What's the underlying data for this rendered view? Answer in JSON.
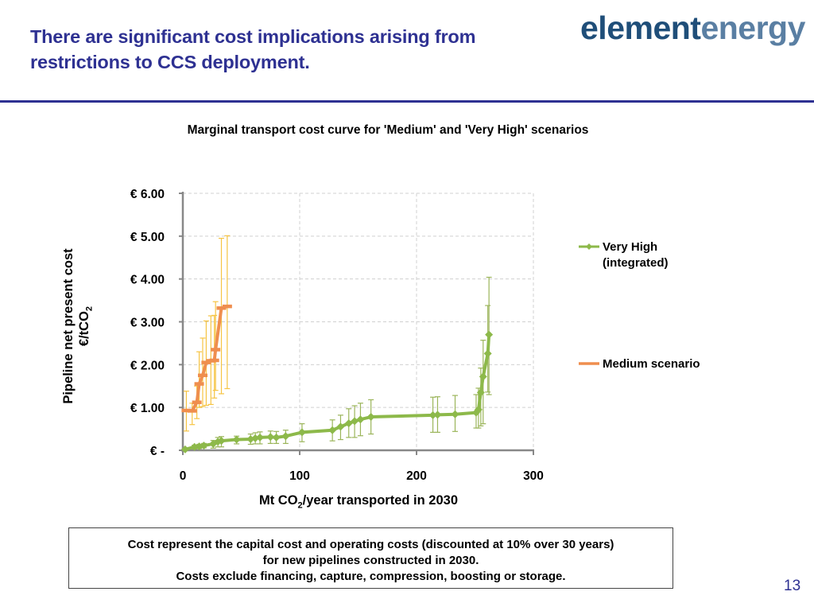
{
  "slide": {
    "title_line1": "There are significant cost implications arising from",
    "title_line2": "restrictions to CCS deployment.",
    "logo_part1": "element",
    "logo_part2": "energy",
    "page_number": "13",
    "note_lines": [
      "Cost represent the capital cost and operating costs (discounted at 10% over 30 years)",
      "for new pipelines constructed in 2030.",
      "Costs exclude financing, capture, compression, boosting or storage."
    ]
  },
  "chart_data": {
    "type": "line",
    "title": "Marginal transport cost curve for 'Medium' and 'Very High' scenarios",
    "xlabel": "Mt CO2/year transported in 2030",
    "xlabel_main": "Mt CO",
    "xlabel_sub": "2",
    "xlabel_rest": "/year transported in 2030",
    "ylabel_line1": "Pipeline net present cost",
    "ylabel_line2": "€/tCO",
    "ylabel_sub": "2",
    "xlim": [
      0,
      300
    ],
    "ylim": [
      0,
      6
    ],
    "xticks": [
      0,
      100,
      200,
      300
    ],
    "xtick_labels": [
      "0",
      "100",
      "200",
      "300"
    ],
    "yticks": [
      0,
      1,
      2,
      3,
      4,
      5,
      6
    ],
    "ytick_labels": [
      "€ -",
      "€ 1.00",
      "€ 2.00",
      "€ 3.00",
      "€ 4.00",
      "€ 5.00",
      "€ 6.00"
    ],
    "grid": true,
    "legend_position": "right",
    "series": [
      {
        "name": "Very High (integrated)",
        "label_line1": "Very High",
        "label_line2": "(integrated)",
        "color": "#8db94a",
        "errcolor": "#9bb55a",
        "marker": "diamond",
        "x": [
          2,
          10,
          14,
          18,
          26,
          30,
          33,
          46,
          58,
          62,
          66,
          75,
          80,
          88,
          102,
          128,
          135,
          142,
          147,
          152,
          161,
          214,
          218,
          233,
          251,
          253,
          255,
          257,
          261,
          262
        ],
        "y": [
          0.02,
          0.08,
          0.09,
          0.11,
          0.15,
          0.2,
          0.22,
          0.25,
          0.26,
          0.28,
          0.3,
          0.31,
          0.3,
          0.33,
          0.42,
          0.47,
          0.55,
          0.63,
          0.68,
          0.72,
          0.78,
          0.82,
          0.83,
          0.84,
          0.88,
          0.95,
          1.35,
          1.72,
          2.26,
          2.7
        ],
        "err_low": [
          0.0,
          0.05,
          0.05,
          0.05,
          0.1,
          0.12,
          0.14,
          0.1,
          0.12,
          0.13,
          0.15,
          0.15,
          0.14,
          0.17,
          0.22,
          0.25,
          0.3,
          0.33,
          0.38,
          0.38,
          0.4,
          0.4,
          0.41,
          0.4,
          0.36,
          0.43,
          0.78,
          1.1,
          0.9,
          1.4
        ],
        "err_high": [
          0.03,
          0.04,
          0.05,
          0.05,
          0.08,
          0.1,
          0.1,
          0.08,
          0.12,
          0.13,
          0.13,
          0.14,
          0.14,
          0.14,
          0.2,
          0.24,
          0.27,
          0.34,
          0.36,
          0.38,
          0.4,
          0.42,
          0.42,
          0.44,
          0.42,
          0.5,
          0.57,
          0.85,
          1.12,
          1.34
        ]
      },
      {
        "name": "Medium scenario",
        "label_line1": "Medium scenario",
        "color": "#ef8e4e",
        "errcolor": "#f6c443",
        "marker": "dash",
        "x": [
          3,
          8,
          12,
          14,
          17,
          20,
          24,
          27,
          28,
          33,
          38
        ],
        "y": [
          0.93,
          0.92,
          1.12,
          1.55,
          1.75,
          2.05,
          2.09,
          2.1,
          2.35,
          3.32,
          3.36
        ],
        "err_low": [
          0.48,
          0.32,
          0.38,
          0.55,
          0.73,
          1.0,
          1.02,
          0.88,
          0.95,
          2.0,
          1.92
        ],
        "err_high": [
          0.45,
          0.18,
          0.38,
          0.75,
          0.87,
          0.97,
          1.05,
          1.05,
          1.12,
          1.63,
          1.65
        ]
      }
    ]
  }
}
